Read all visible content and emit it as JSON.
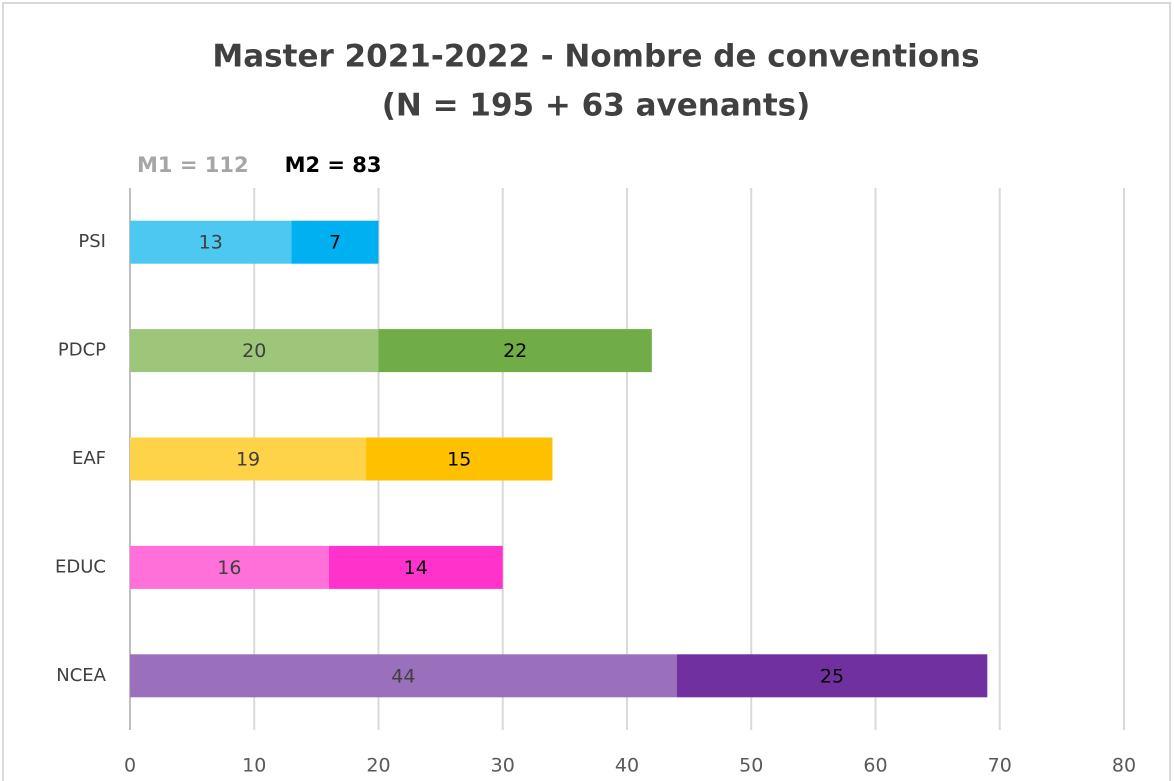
{
  "chart_data": {
    "type": "stacked_barh",
    "title": "Master 2021-2022 - Nombre de conventions",
    "subtitle": "(N = 195 + 63 avenants)",
    "categories": [
      "PSI",
      "PDCP",
      "EAF",
      "EDUC",
      "NCEA"
    ],
    "series": [
      {
        "name": "M1 = 112",
        "color": "#a6a6a6",
        "colors": [
          "#4dc8f0",
          "#9dc67a",
          "#ffd347",
          "#ff70d9",
          "#9a6fbc"
        ],
        "values": [
          13,
          20,
          19,
          16,
          44
        ]
      },
      {
        "name": "M2 = 83",
        "color": "#000000",
        "colors": [
          "#00b0f0",
          "#70ad47",
          "#ffc000",
          "#ff33cc",
          "#7030a0"
        ],
        "values": [
          7,
          22,
          15,
          14,
          25
        ]
      }
    ],
    "xlim": [
      0,
      80
    ],
    "xticks": [
      0,
      10,
      20,
      30,
      40,
      50,
      60,
      70,
      80
    ],
    "grid": true
  }
}
